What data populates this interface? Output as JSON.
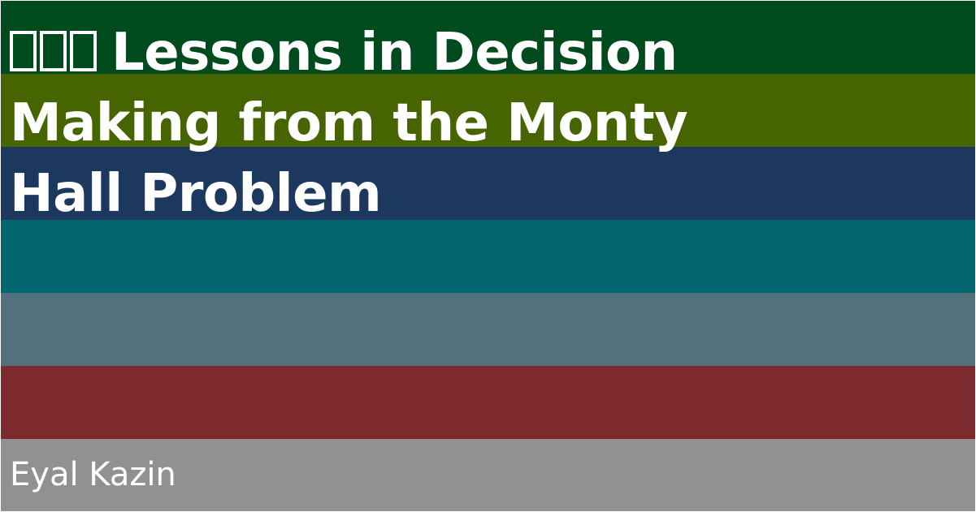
{
  "title": {
    "emoji_icons": [
      "missing-glyph-icon",
      "missing-glyph-icon",
      "missing-glyph-icon"
    ],
    "line1": "Lessons in Decision",
    "line2": "Making from the Monty",
    "line3": "Hall Problem"
  },
  "author": "Eyal Kazin",
  "stripes": [
    {
      "color": "#004B1E"
    },
    {
      "color": "#466400"
    },
    {
      "color": "#1C385E"
    },
    {
      "color": "#016570"
    },
    {
      "color": "#53707C"
    },
    {
      "color": "#7C2A2E"
    },
    {
      "color": "#919191"
    }
  ]
}
